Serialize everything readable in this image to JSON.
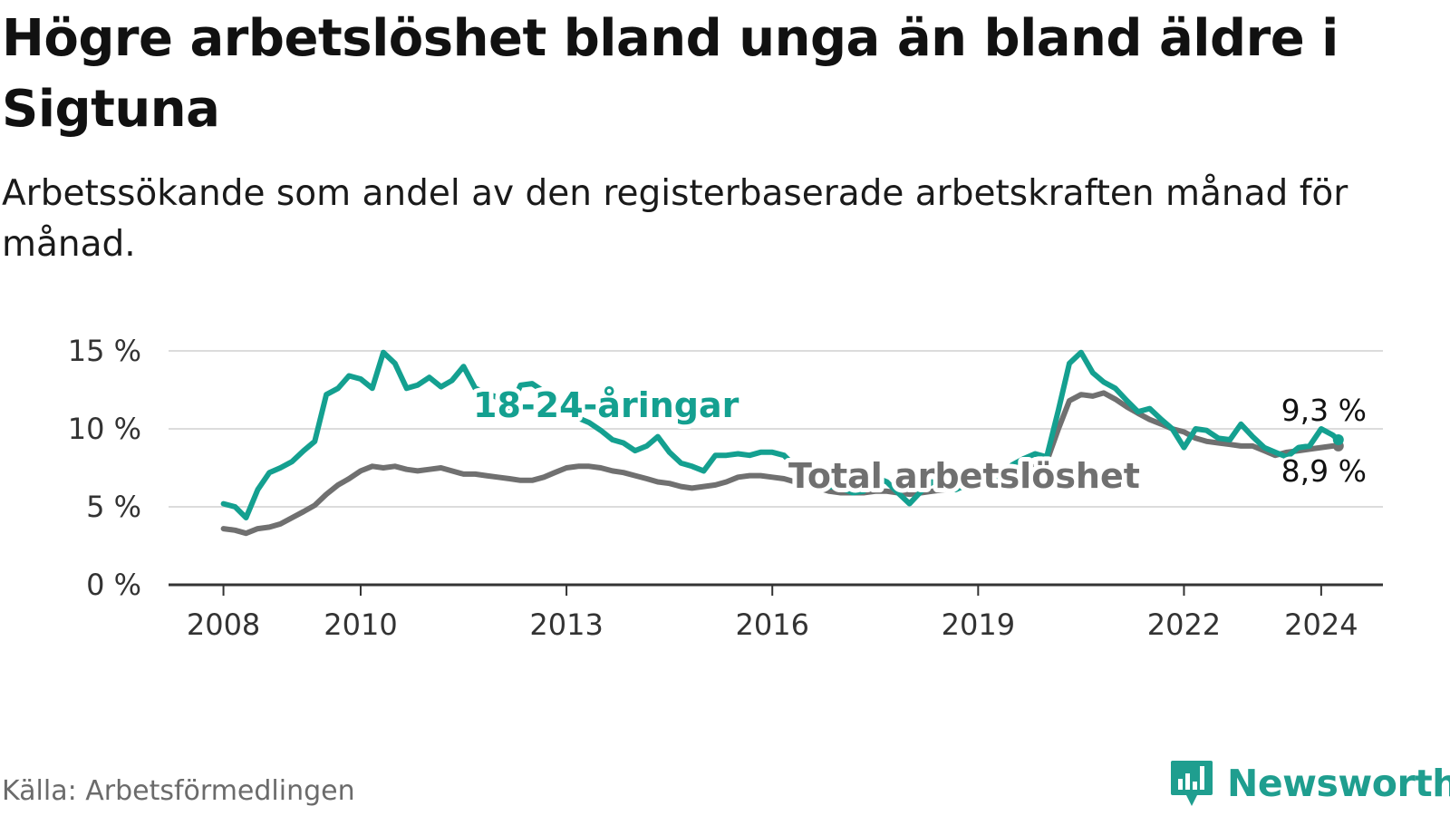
{
  "title": "Högre arbetslöshet bland unga än bland äldre i Sigtuna",
  "subtitle": "Arbetssökande som andel av den registerbaserade arbetskraften månad för månad.",
  "source": "Källa: Arbetsförmedlingen",
  "brand": {
    "name": "Newsworthy",
    "icon": "newsworthy-logo-icon",
    "color": "#1f9e8f"
  },
  "chart_data": {
    "type": "line",
    "title": "Högre arbetslöshet bland unga än bland äldre i Sigtuna",
    "xlabel": "",
    "ylabel": "",
    "x_ticks": [
      2008,
      2010,
      2013,
      2016,
      2019,
      2022,
      2024
    ],
    "x_tick_labels": [
      "2008",
      "2010",
      "2013",
      "2016",
      "2019",
      "2022",
      "2024"
    ],
    "xlim": [
      2007.2,
      2024.9
    ],
    "y_ticks": [
      0,
      5,
      10,
      15
    ],
    "y_tick_labels": [
      "0 %",
      "5 %",
      "10 %",
      "15 %"
    ],
    "ylim": [
      0,
      15
    ],
    "grid": true,
    "series": [
      {
        "name": "18-24-åringar",
        "label": "18-24-åringar",
        "color": "#14a090",
        "end_label": "9,3 %",
        "x": [
          2008.0,
          2008.17,
          2008.33,
          2008.5,
          2008.67,
          2008.83,
          2009.0,
          2009.17,
          2009.33,
          2009.5,
          2009.67,
          2009.83,
          2010.0,
          2010.17,
          2010.33,
          2010.5,
          2010.67,
          2010.83,
          2011.0,
          2011.17,
          2011.33,
          2011.5,
          2011.67,
          2011.83,
          2012.0,
          2012.17,
          2012.33,
          2012.5,
          2012.67,
          2012.83,
          2013.0,
          2013.17,
          2013.33,
          2013.5,
          2013.67,
          2013.83,
          2014.0,
          2014.17,
          2014.33,
          2014.5,
          2014.67,
          2014.83,
          2015.0,
          2015.17,
          2015.33,
          2015.5,
          2015.67,
          2015.83,
          2016.0,
          2016.17,
          2016.33,
          2016.5,
          2016.67,
          2016.83,
          2017.0,
          2017.17,
          2017.33,
          2017.5,
          2017.67,
          2017.83,
          2018.0,
          2018.17,
          2018.33,
          2018.5,
          2018.67,
          2018.83,
          2019.0,
          2019.17,
          2019.33,
          2019.5,
          2019.67,
          2019.83,
          2020.0,
          2020.17,
          2020.33,
          2020.5,
          2020.67,
          2020.83,
          2021.0,
          2021.17,
          2021.33,
          2021.5,
          2021.67,
          2021.83,
          2022.0,
          2022.17,
          2022.33,
          2022.5,
          2022.67,
          2022.83,
          2023.0,
          2023.17,
          2023.33,
          2023.5,
          2023.67,
          2023.83,
          2024.0,
          2024.17,
          2024.25
        ],
        "values": [
          5.2,
          5.0,
          4.3,
          6.1,
          7.2,
          7.5,
          7.9,
          8.6,
          9.2,
          12.2,
          12.6,
          13.4,
          13.2,
          12.6,
          14.9,
          14.2,
          12.6,
          12.8,
          13.3,
          12.7,
          13.1,
          14.0,
          12.6,
          12.3,
          12.0,
          11.2,
          12.8,
          12.9,
          12.4,
          11.6,
          11.2,
          10.7,
          10.4,
          9.9,
          9.3,
          9.1,
          8.6,
          8.9,
          9.5,
          8.5,
          7.8,
          7.6,
          7.3,
          8.3,
          8.3,
          8.4,
          8.3,
          8.5,
          8.5,
          8.3,
          7.6,
          7.3,
          6.5,
          6.3,
          6.2,
          5.9,
          6.0,
          6.9,
          6.6,
          5.9,
          5.2,
          6.0,
          6.6,
          6.3,
          6.1,
          6.4,
          6.6,
          6.7,
          7.1,
          7.7,
          8.1,
          8.4,
          8.2,
          11.2,
          14.2,
          14.9,
          13.6,
          13.0,
          12.6,
          11.8,
          11.1,
          11.3,
          10.6,
          10.0,
          8.8,
          10.0,
          9.9,
          9.4,
          9.3,
          10.3,
          9.5,
          8.8,
          8.5,
          8.2,
          8.8,
          8.9,
          10.0,
          9.6,
          9.3
        ]
      },
      {
        "name": "Total arbetslöshet",
        "label": "Total arbetslöshet",
        "color": "#707070",
        "end_label": "8,9 %",
        "x": [
          2008.0,
          2008.17,
          2008.33,
          2008.5,
          2008.67,
          2008.83,
          2009.0,
          2009.17,
          2009.33,
          2009.5,
          2009.67,
          2009.83,
          2010.0,
          2010.17,
          2010.33,
          2010.5,
          2010.67,
          2010.83,
          2011.0,
          2011.17,
          2011.33,
          2011.5,
          2011.67,
          2011.83,
          2012.0,
          2012.17,
          2012.33,
          2012.5,
          2012.67,
          2012.83,
          2013.0,
          2013.17,
          2013.33,
          2013.5,
          2013.67,
          2013.83,
          2014.0,
          2014.17,
          2014.33,
          2014.5,
          2014.67,
          2014.83,
          2015.0,
          2015.17,
          2015.33,
          2015.5,
          2015.67,
          2015.83,
          2016.0,
          2016.17,
          2016.33,
          2016.5,
          2016.67,
          2016.83,
          2017.0,
          2017.17,
          2017.33,
          2017.5,
          2017.67,
          2017.83,
          2018.0,
          2018.17,
          2018.33,
          2018.5,
          2018.67,
          2018.83,
          2019.0,
          2019.17,
          2019.33,
          2019.5,
          2019.67,
          2019.83,
          2020.0,
          2020.17,
          2020.33,
          2020.5,
          2020.67,
          2020.83,
          2021.0,
          2021.17,
          2021.33,
          2021.5,
          2021.67,
          2021.83,
          2022.0,
          2022.17,
          2022.33,
          2022.5,
          2022.67,
          2022.83,
          2023.0,
          2023.17,
          2023.33,
          2023.5,
          2023.67,
          2023.83,
          2024.0,
          2024.17,
          2024.25
        ],
        "values": [
          3.6,
          3.5,
          3.3,
          3.6,
          3.7,
          3.9,
          4.3,
          4.7,
          5.1,
          5.8,
          6.4,
          6.8,
          7.3,
          7.6,
          7.5,
          7.6,
          7.4,
          7.3,
          7.4,
          7.5,
          7.3,
          7.1,
          7.1,
          7.0,
          6.9,
          6.8,
          6.7,
          6.7,
          6.9,
          7.2,
          7.5,
          7.6,
          7.6,
          7.5,
          7.3,
          7.2,
          7.0,
          6.8,
          6.6,
          6.5,
          6.3,
          6.2,
          6.3,
          6.4,
          6.6,
          6.9,
          7.0,
          7.0,
          6.9,
          6.8,
          6.6,
          6.4,
          6.2,
          6.0,
          5.9,
          5.9,
          5.9,
          6.0,
          6.0,
          5.9,
          5.8,
          5.9,
          6.0,
          6.1,
          6.2,
          6.3,
          6.5,
          6.7,
          6.9,
          7.1,
          7.3,
          7.6,
          7.9,
          10.0,
          11.8,
          12.2,
          12.1,
          12.3,
          11.9,
          11.4,
          11.0,
          10.6,
          10.3,
          10.0,
          9.8,
          9.4,
          9.2,
          9.1,
          9.0,
          8.9,
          8.9,
          8.6,
          8.3,
          8.5,
          8.6,
          8.7,
          8.8,
          8.9,
          8.9
        ]
      }
    ]
  }
}
